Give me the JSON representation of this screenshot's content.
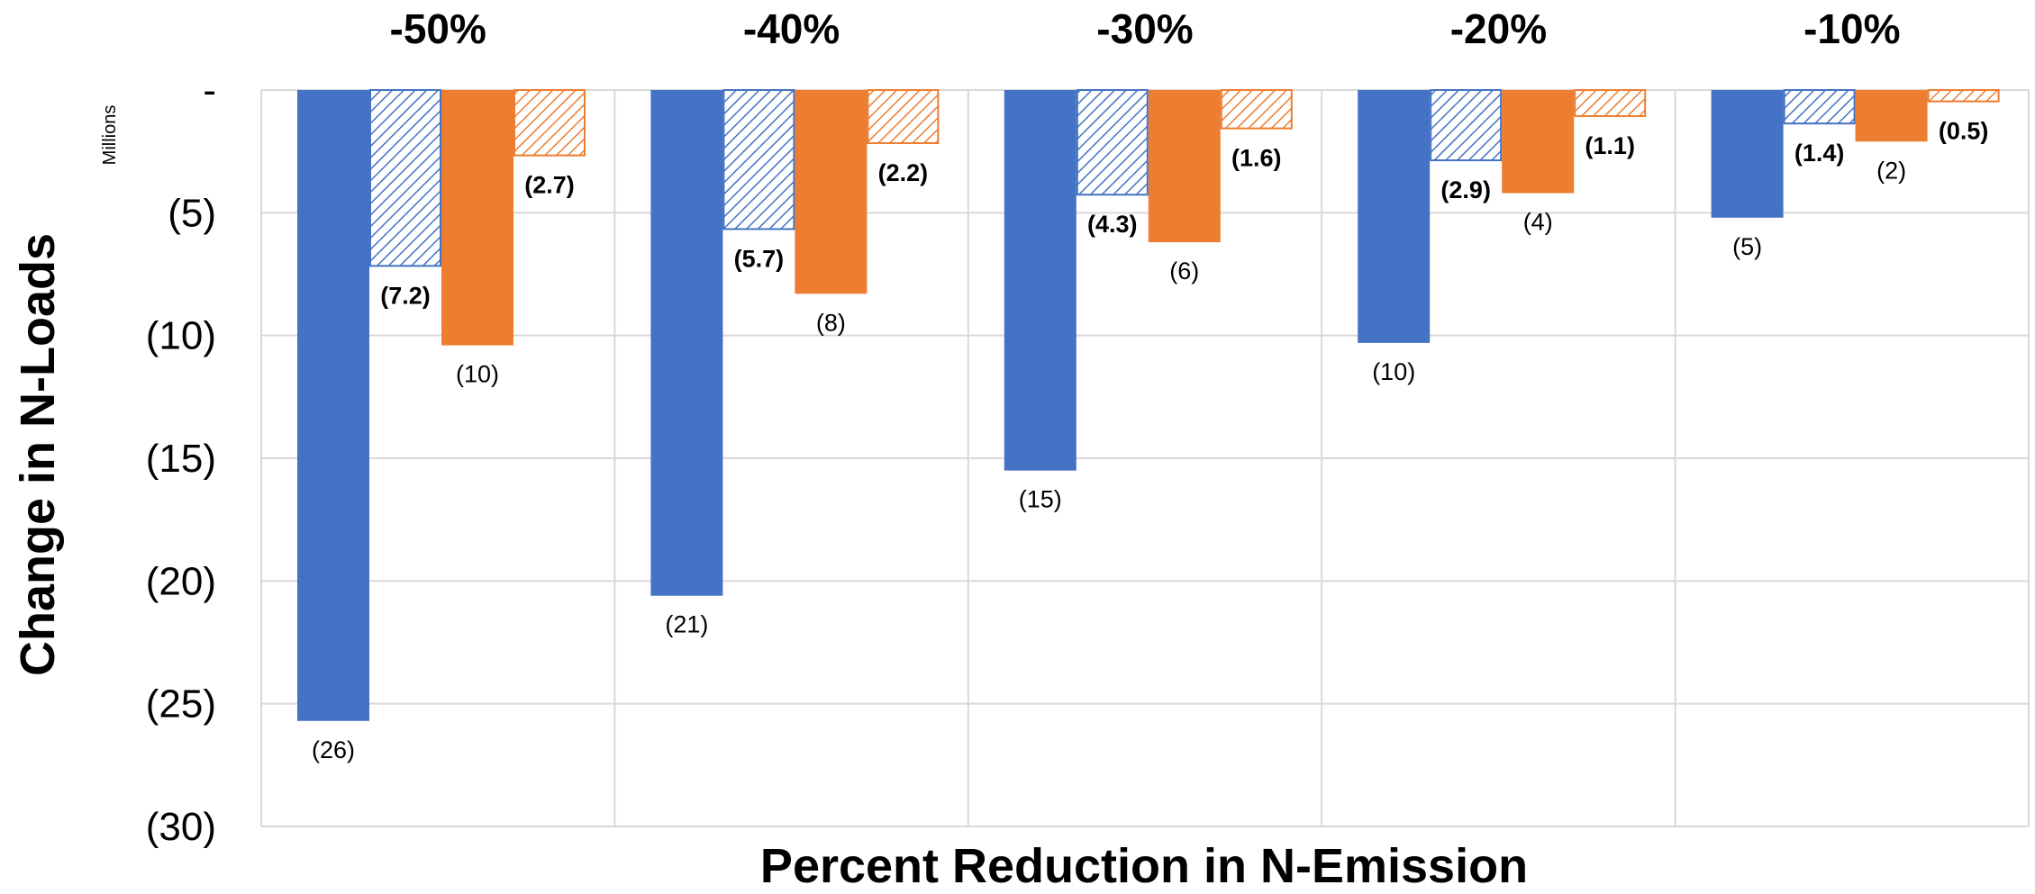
{
  "chart_data": {
    "type": "bar",
    "categories": [
      "-50%",
      "-40%",
      "-30%",
      "-20%",
      "-10%"
    ],
    "category_label_position": "top",
    "xlabel": "Percent Reduction in N-Emission",
    "ylabel": "Change in N-Loads",
    "y_units": "Millions",
    "ylim": [
      -30,
      0
    ],
    "y_ticks": [
      0,
      -5,
      -10,
      -15,
      -20,
      -25,
      -30
    ],
    "y_tick_labels": [
      "-",
      "(5)",
      "(10)",
      "(15)",
      "(20)",
      "(25)",
      "(30)"
    ],
    "grid": true,
    "legend": "none",
    "series": [
      {
        "values": [
          -25.7,
          -20.6,
          -15.5,
          -10.3,
          -5.2
        ],
        "labels": [
          "(26)",
          "(21)",
          "(15)",
          "(10)",
          "(5)"
        ],
        "color": "#4472C4",
        "pattern": "solid",
        "label_bold": false
      },
      {
        "values": [
          -7.2,
          -5.7,
          -4.3,
          -2.9,
          -1.4
        ],
        "labels": [
          "(7.2)",
          "(5.7)",
          "(4.3)",
          "(2.9)",
          "(1.4)"
        ],
        "color": "#4472C4",
        "pattern": "hatched",
        "label_bold": true
      },
      {
        "values": [
          -10.4,
          -8.3,
          -6.2,
          -4.2,
          -2.1
        ],
        "labels": [
          "(10)",
          "(8)",
          "(6)",
          "(4)",
          "(2)"
        ],
        "color": "#ED7D31",
        "pattern": "solid",
        "label_bold": false
      },
      {
        "values": [
          -2.7,
          -2.2,
          -1.6,
          -1.1,
          -0.5
        ],
        "labels": [
          "(2.7)",
          "(2.2)",
          "(1.6)",
          "(1.1)",
          "(0.5)"
        ],
        "color": "#ED7D31",
        "pattern": "hatched",
        "label_bold": true
      }
    ]
  }
}
